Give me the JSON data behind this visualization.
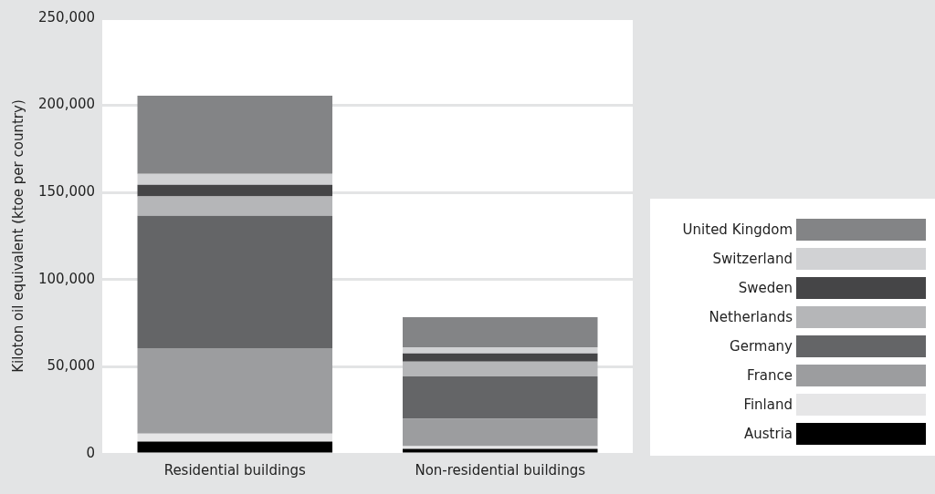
{
  "chart_data": {
    "type": "bar",
    "stacked": true,
    "ylabel": "Kiloton oil equivalent (ktoe per country)",
    "categories": [
      "Residential buildings",
      "Non-residential buildings"
    ],
    "series": [
      {
        "name": "Austria",
        "color": "#000000",
        "values": [
          7000,
          2900
        ]
      },
      {
        "name": "Finland",
        "color": "#e6e6e7",
        "values": [
          4700,
          1500
        ]
      },
      {
        "name": "France",
        "color": "#9c9d9f",
        "values": [
          49000,
          15700
        ]
      },
      {
        "name": "Germany",
        "color": "#646567",
        "values": [
          76000,
          24400
        ]
      },
      {
        "name": "Netherlands",
        "color": "#b5b6b8",
        "values": [
          11000,
          8400
        ]
      },
      {
        "name": "Sweden",
        "color": "#454547",
        "values": [
          6700,
          4700
        ]
      },
      {
        "name": "Switzerland",
        "color": "#d1d2d4",
        "values": [
          6300,
          3600
        ]
      },
      {
        "name": "United Kingdom",
        "color": "#838486",
        "values": [
          44800,
          17200
        ]
      }
    ],
    "ylim": [
      0,
      250000
    ],
    "yticks": [
      0,
      {
        "value": 50000,
        "label": "50,000"
      },
      {
        "value": 100000,
        "label": "100,000"
      },
      {
        "value": 150000,
        "label": "150,000"
      },
      {
        "value": 200000,
        "label": "200,000"
      },
      {
        "value": 250000,
        "label": "250,000"
      }
    ],
    "grid": "y",
    "legend": "right"
  }
}
